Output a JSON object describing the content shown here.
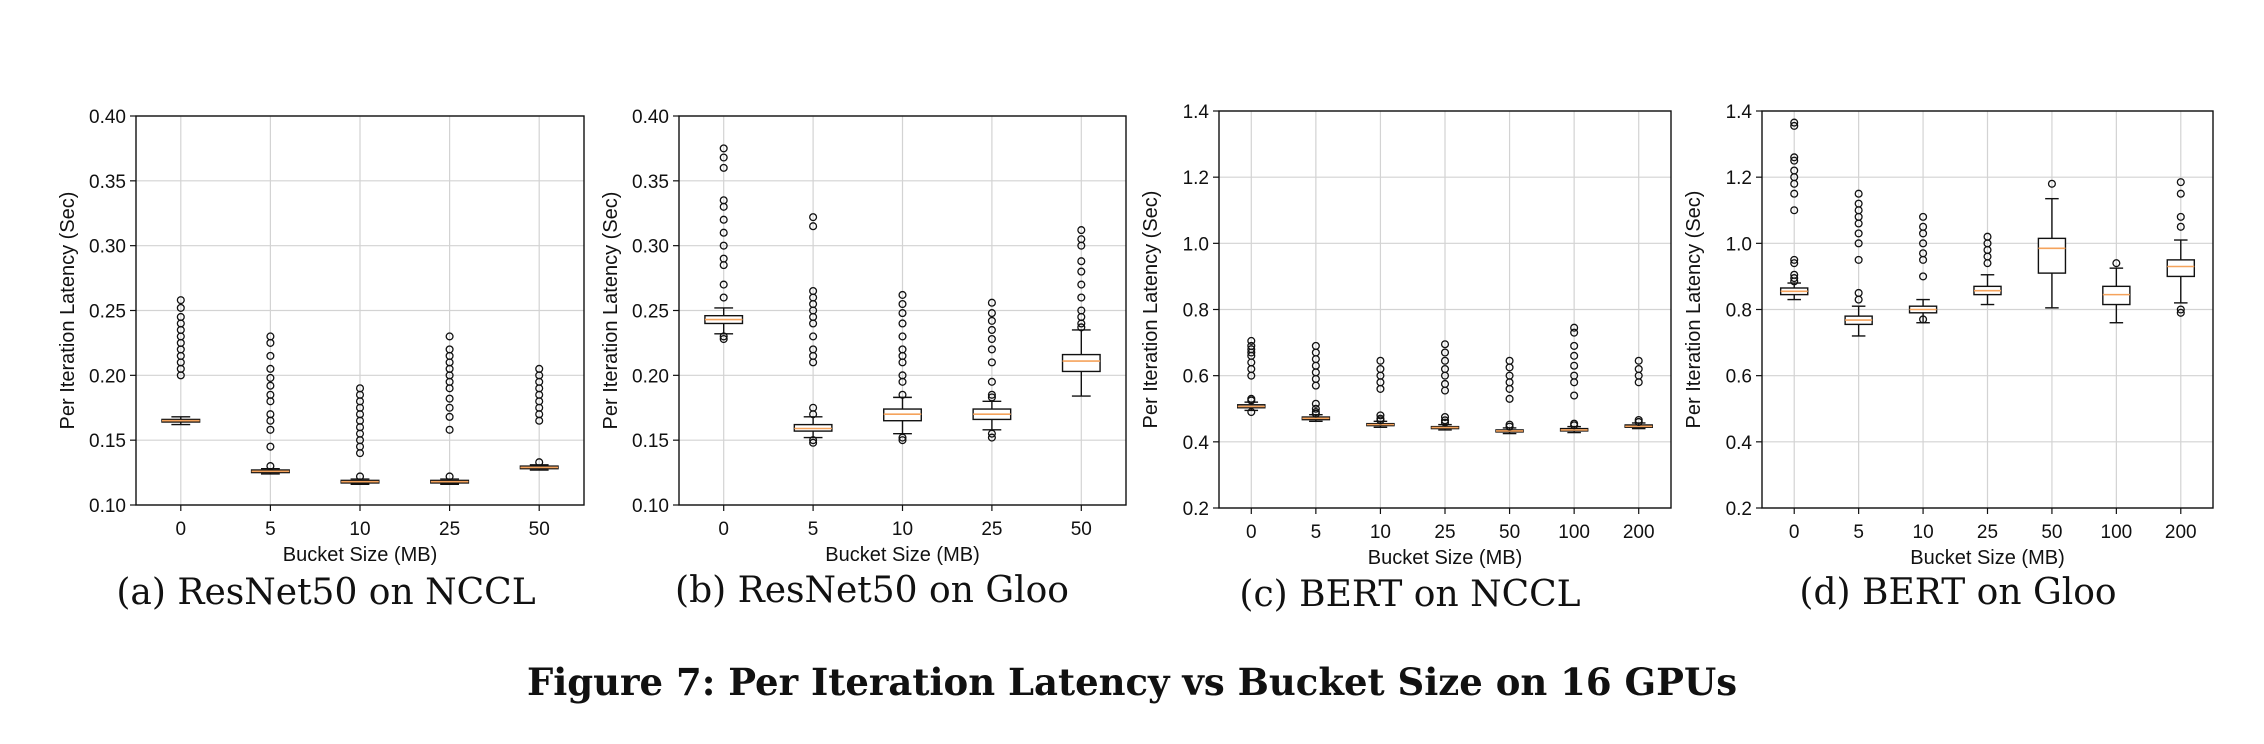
{
  "figure_caption": "Figure 7: Per Iteration Latency vs Bucket Size on 16 GPUs",
  "colors": {
    "box_edge": "#111111",
    "box_fill": "#ffffff",
    "median": "#f5a35c",
    "grid": "#d3d3d3",
    "outlier": "#111111"
  },
  "chart_data": [
    {
      "type": "boxplot",
      "caption": "(a) ResNet50 on NCCL",
      "xlabel": "Bucket Size (MB)",
      "ylabel": "Per Iteration Latency (Sec)",
      "ylim": [
        0.1,
        0.4
      ],
      "yticks": [
        "0.10",
        "0.15",
        "0.20",
        "0.25",
        "0.30",
        "0.35",
        "0.40"
      ],
      "categories": [
        "0",
        "5",
        "10",
        "25",
        "50"
      ],
      "grid": true,
      "boxes": [
        {
          "category": "0",
          "whisker_low": 0.162,
          "q1": 0.164,
          "median": 0.165,
          "q3": 0.166,
          "whisker_high": 0.168,
          "outliers": [
            0.2,
            0.205,
            0.21,
            0.215,
            0.22,
            0.225,
            0.23,
            0.235,
            0.24,
            0.245,
            0.252,
            0.258
          ]
        },
        {
          "category": "5",
          "whisker_low": 0.124,
          "q1": 0.125,
          "median": 0.126,
          "q3": 0.127,
          "whisker_high": 0.128,
          "outliers": [
            0.13,
            0.145,
            0.158,
            0.165,
            0.17,
            0.18,
            0.185,
            0.192,
            0.198,
            0.205,
            0.215,
            0.225,
            0.23
          ]
        },
        {
          "category": "10",
          "whisker_low": 0.116,
          "q1": 0.117,
          "median": 0.118,
          "q3": 0.119,
          "whisker_high": 0.12,
          "outliers": [
            0.122,
            0.14,
            0.145,
            0.15,
            0.155,
            0.16,
            0.165,
            0.17,
            0.175,
            0.18,
            0.185,
            0.19
          ]
        },
        {
          "category": "25",
          "whisker_low": 0.116,
          "q1": 0.117,
          "median": 0.118,
          "q3": 0.119,
          "whisker_high": 0.12,
          "outliers": [
            0.122,
            0.158,
            0.168,
            0.175,
            0.182,
            0.19,
            0.195,
            0.2,
            0.205,
            0.21,
            0.215,
            0.22,
            0.23
          ]
        },
        {
          "category": "50",
          "whisker_low": 0.127,
          "q1": 0.128,
          "median": 0.129,
          "q3": 0.13,
          "whisker_high": 0.131,
          "outliers": [
            0.133,
            0.165,
            0.17,
            0.175,
            0.18,
            0.185,
            0.19,
            0.195,
            0.2,
            0.205
          ]
        }
      ]
    },
    {
      "type": "boxplot",
      "caption": "(b) ResNet50 on Gloo",
      "xlabel": "Bucket Size (MB)",
      "ylabel": "Per Iteration Latency (Sec)",
      "ylim": [
        0.1,
        0.4
      ],
      "yticks": [
        "0.10",
        "0.15",
        "0.20",
        "0.25",
        "0.30",
        "0.35",
        "0.40"
      ],
      "categories": [
        "0",
        "5",
        "10",
        "25",
        "50"
      ],
      "grid": true,
      "boxes": [
        {
          "category": "0",
          "whisker_low": 0.232,
          "q1": 0.24,
          "median": 0.243,
          "q3": 0.246,
          "whisker_high": 0.252,
          "outliers": [
            0.228,
            0.23,
            0.26,
            0.27,
            0.285,
            0.29,
            0.3,
            0.31,
            0.32,
            0.33,
            0.335,
            0.36,
            0.368,
            0.375
          ]
        },
        {
          "category": "5",
          "whisker_low": 0.152,
          "q1": 0.157,
          "median": 0.159,
          "q3": 0.162,
          "whisker_high": 0.168,
          "outliers": [
            0.148,
            0.15,
            0.17,
            0.175,
            0.21,
            0.215,
            0.22,
            0.23,
            0.24,
            0.245,
            0.25,
            0.255,
            0.26,
            0.265,
            0.315,
            0.322
          ]
        },
        {
          "category": "10",
          "whisker_low": 0.155,
          "q1": 0.165,
          "median": 0.17,
          "q3": 0.174,
          "whisker_high": 0.183,
          "outliers": [
            0.15,
            0.152,
            0.185,
            0.195,
            0.2,
            0.21,
            0.215,
            0.22,
            0.23,
            0.24,
            0.248,
            0.255,
            0.262
          ]
        },
        {
          "category": "25",
          "whisker_low": 0.158,
          "q1": 0.166,
          "median": 0.17,
          "q3": 0.174,
          "whisker_high": 0.18,
          "outliers": [
            0.152,
            0.155,
            0.183,
            0.185,
            0.195,
            0.21,
            0.22,
            0.228,
            0.235,
            0.242,
            0.248,
            0.256
          ]
        },
        {
          "category": "50",
          "whisker_low": 0.184,
          "q1": 0.203,
          "median": 0.211,
          "q3": 0.216,
          "whisker_high": 0.235,
          "outliers": [
            0.237,
            0.24,
            0.245,
            0.25,
            0.26,
            0.27,
            0.28,
            0.288,
            0.3,
            0.305,
            0.312
          ]
        }
      ]
    },
    {
      "type": "boxplot",
      "caption": "(c) BERT on NCCL",
      "xlabel": "Bucket Size (MB)",
      "ylabel": "Per Iteration Latency (Sec)",
      "ylim": [
        0.2,
        1.4
      ],
      "yticks": [
        "0.2",
        "0.4",
        "0.6",
        "0.8",
        "1.0",
        "1.2",
        "1.4"
      ],
      "categories": [
        "0",
        "5",
        "10",
        "25",
        "50",
        "100",
        "200"
      ],
      "grid": true,
      "boxes": [
        {
          "category": "0",
          "whisker_low": 0.495,
          "q1": 0.503,
          "median": 0.507,
          "q3": 0.512,
          "whisker_high": 0.52,
          "outliers": [
            0.49,
            0.525,
            0.53,
            0.6,
            0.62,
            0.64,
            0.66,
            0.67,
            0.68,
            0.69,
            0.705
          ]
        },
        {
          "category": "5",
          "whisker_low": 0.462,
          "q1": 0.467,
          "median": 0.471,
          "q3": 0.475,
          "whisker_high": 0.482,
          "outliers": [
            0.485,
            0.49,
            0.5,
            0.515,
            0.57,
            0.59,
            0.61,
            0.63,
            0.65,
            0.67,
            0.69
          ]
        },
        {
          "category": "10",
          "whisker_low": 0.444,
          "q1": 0.449,
          "median": 0.452,
          "q3": 0.455,
          "whisker_high": 0.462,
          "outliers": [
            0.465,
            0.47,
            0.48,
            0.56,
            0.58,
            0.6,
            0.62,
            0.645
          ]
        },
        {
          "category": "25",
          "whisker_low": 0.436,
          "q1": 0.44,
          "median": 0.443,
          "q3": 0.446,
          "whisker_high": 0.452,
          "outliers": [
            0.458,
            0.465,
            0.475,
            0.555,
            0.575,
            0.6,
            0.62,
            0.645,
            0.67,
            0.695
          ]
        },
        {
          "category": "50",
          "whisker_low": 0.425,
          "q1": 0.43,
          "median": 0.433,
          "q3": 0.436,
          "whisker_high": 0.442,
          "outliers": [
            0.446,
            0.452,
            0.53,
            0.56,
            0.58,
            0.6,
            0.625,
            0.645
          ]
        },
        {
          "category": "100",
          "whisker_low": 0.428,
          "q1": 0.433,
          "median": 0.436,
          "q3": 0.44,
          "whisker_high": 0.446,
          "outliers": [
            0.45,
            0.455,
            0.54,
            0.58,
            0.6,
            0.63,
            0.66,
            0.69,
            0.73,
            0.745
          ]
        },
        {
          "category": "200",
          "whisker_low": 0.44,
          "q1": 0.444,
          "median": 0.447,
          "q3": 0.451,
          "whisker_high": 0.457,
          "outliers": [
            0.46,
            0.466,
            0.58,
            0.6,
            0.62,
            0.645
          ]
        }
      ]
    },
    {
      "type": "boxplot",
      "caption": "(d) BERT on Gloo",
      "xlabel": "Bucket Size (MB)",
      "ylabel": "Per Iteration Latency (Sec)",
      "ylim": [
        0.2,
        1.4
      ],
      "yticks": [
        "0.2",
        "0.4",
        "0.6",
        "0.8",
        "1.0",
        "1.2",
        "1.4"
      ],
      "categories": [
        "0",
        "5",
        "10",
        "25",
        "50",
        "100",
        "200"
      ],
      "grid": true,
      "boxes": [
        {
          "category": "0",
          "whisker_low": 0.83,
          "q1": 0.845,
          "median": 0.855,
          "q3": 0.865,
          "whisker_high": 0.88,
          "outliers": [
            0.885,
            0.895,
            0.905,
            0.94,
            0.95,
            1.1,
            1.15,
            1.18,
            1.2,
            1.22,
            1.25,
            1.26,
            1.355,
            1.365
          ]
        },
        {
          "category": "5",
          "whisker_low": 0.72,
          "q1": 0.755,
          "median": 0.768,
          "q3": 0.78,
          "whisker_high": 0.81,
          "outliers": [
            0.83,
            0.85,
            0.95,
            1.0,
            1.03,
            1.06,
            1.08,
            1.1,
            1.12,
            1.15
          ]
        },
        {
          "category": "10",
          "whisker_low": 0.76,
          "q1": 0.79,
          "median": 0.8,
          "q3": 0.81,
          "whisker_high": 0.83,
          "outliers": [
            0.77,
            0.9,
            0.95,
            0.97,
            1.0,
            1.03,
            1.05,
            1.08
          ]
        },
        {
          "category": "25",
          "whisker_low": 0.815,
          "q1": 0.845,
          "median": 0.857,
          "q3": 0.87,
          "whisker_high": 0.905,
          "outliers": [
            0.94,
            0.96,
            0.98,
            1.0,
            1.02
          ]
        },
        {
          "category": "50",
          "whisker_low": 0.805,
          "q1": 0.91,
          "median": 0.985,
          "q3": 1.015,
          "whisker_high": 1.135,
          "outliers": [
            1.18
          ]
        },
        {
          "category": "100",
          "whisker_low": 0.76,
          "q1": 0.815,
          "median": 0.845,
          "q3": 0.87,
          "whisker_high": 0.925,
          "outliers": [
            0.94
          ]
        },
        {
          "category": "200",
          "whisker_low": 0.82,
          "q1": 0.9,
          "median": 0.93,
          "q3": 0.95,
          "whisker_high": 1.01,
          "outliers": [
            0.79,
            0.8,
            1.05,
            1.08,
            1.15,
            1.185
          ]
        }
      ]
    }
  ]
}
